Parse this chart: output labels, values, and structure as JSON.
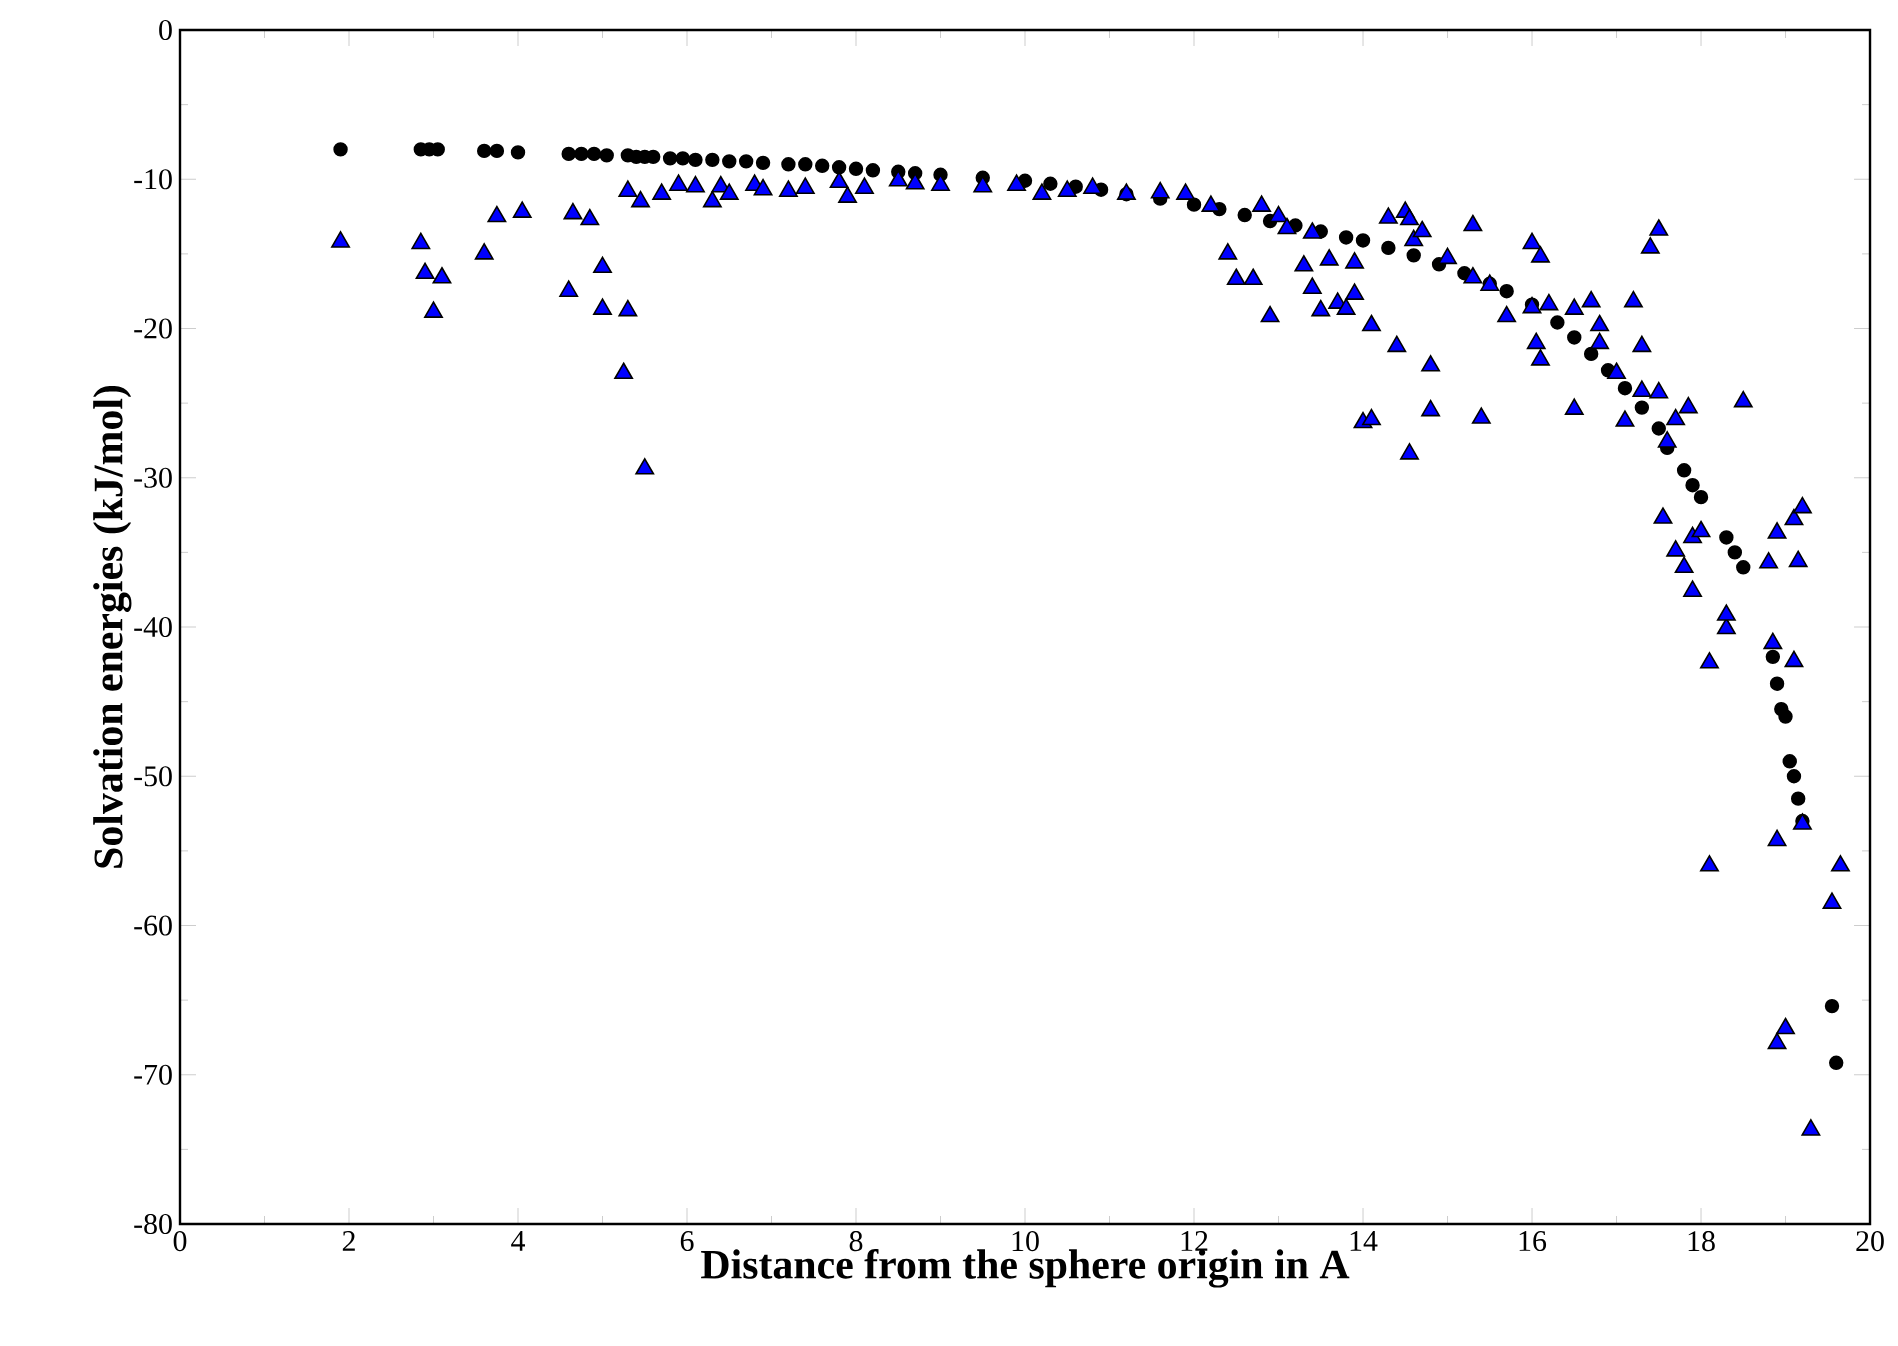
{
  "chart_data": {
    "type": "scatter",
    "xlabel": "Distance from the sphere origin in A",
    "ylabel": "Solvation energies  (kJ/mol)",
    "xlim": [
      0,
      20
    ],
    "ylim": [
      -80,
      0
    ],
    "xticks": [
      0,
      2,
      4,
      6,
      8,
      10,
      12,
      14,
      16,
      18,
      20
    ],
    "yticks": [
      -80,
      -70,
      -60,
      -50,
      -40,
      -30,
      -20,
      -10,
      0
    ],
    "series": [
      {
        "color": "#000000",
        "marker": "circle",
        "x": [
          1.9,
          2.85,
          2.95,
          3.05,
          3.6,
          3.75,
          4,
          4.6,
          4.75,
          4.9,
          5.05,
          5.3,
          5.4,
          5.5,
          5.6,
          5.8,
          5.95,
          6.1,
          6.3,
          6.5,
          6.7,
          6.9,
          7.2,
          7.4,
          7.6,
          7.8,
          8,
          8.2,
          8.5,
          8.7,
          9,
          9.5,
          10,
          10.3,
          10.6,
          10.9,
          11.2,
          11.6,
          12,
          12.3,
          12.6,
          12.9,
          13.2,
          13.5,
          13.8,
          14.0,
          14.3,
          14.6,
          14.9,
          15.2,
          15.5,
          15.7,
          16,
          16.3,
          16.5,
          16.7,
          16.9,
          17.1,
          17.3,
          17.5,
          17.6,
          17.8,
          17.9,
          18,
          18.3,
          18.4,
          18.5,
          18.85,
          18.9,
          18.95,
          19.0,
          19.05,
          19.1,
          19.15,
          19.2,
          19.55,
          19.6
        ],
        "values": [
          -8,
          -8,
          -8,
          -8,
          -8.1,
          -8.1,
          -8.2,
          -8.3,
          -8.3,
          -8.3,
          -8.4,
          -8.4,
          -8.5,
          -8.5,
          -8.5,
          -8.6,
          -8.6,
          -8.7,
          -8.7,
          -8.8,
          -8.8,
          -8.9,
          -9,
          -9,
          -9.1,
          -9.2,
          -9.3,
          -9.4,
          -9.5,
          -9.6,
          -9.7,
          -9.9,
          -10.1,
          -10.3,
          -10.5,
          -10.7,
          -11,
          -11.3,
          -11.7,
          -12,
          -12.4,
          -12.8,
          -13.1,
          -13.5,
          -13.9,
          -14.1,
          -14.6,
          -15.1,
          -15.7,
          -16.3,
          -17,
          -17.5,
          -18.4,
          -19.6,
          -20.6,
          -21.7,
          -22.8,
          -24,
          -25.3,
          -26.7,
          -28,
          -29.5,
          -30.5,
          -31.3,
          -34,
          -35,
          -36,
          -42,
          -43.8,
          -45.5,
          -46,
          -49,
          -50,
          -51.5,
          -53,
          -65.4,
          -69.2
        ]
      },
      {
        "color": "#0000ff",
        "marker": "triangle",
        "x": [
          1.9,
          2.85,
          2.9,
          3.1,
          3.0,
          3.6,
          3.75,
          4.05,
          4.6,
          4.65,
          4.85,
          5.0,
          5.0,
          5.25,
          5.3,
          5.3,
          5.45,
          5.5,
          5.7,
          5.9,
          6.1,
          6.3,
          6.4,
          6.5,
          6.8,
          6.9,
          7.2,
          7.4,
          7.8,
          7.9,
          8.1,
          8.5,
          8.7,
          9.0,
          9.5,
          9.9,
          10.2,
          10.5,
          10.8,
          11.2,
          11.6,
          11.9,
          12.2,
          12.4,
          12.5,
          12.7,
          12.8,
          12.9,
          13.0,
          13.1,
          13.3,
          13.4,
          13.4,
          13.5,
          13.6,
          13.7,
          13.8,
          13.9,
          13.9,
          14.0,
          14.1,
          14.1,
          14.3,
          14.4,
          14.5,
          14.55,
          14.55,
          14.6,
          14.7,
          14.8,
          14.8,
          15.0,
          15.3,
          15.4,
          15.3,
          15.5,
          15.7,
          16.0,
          16.0,
          16.1,
          16.05,
          16.1,
          16.2,
          16.5,
          16.5,
          16.7,
          16.8,
          16.8,
          17.0,
          17.1,
          17.2,
          17.3,
          17.3,
          17.4,
          17.5,
          17.5,
          17.55,
          17.6,
          17.7,
          17.7,
          17.8,
          17.85,
          17.9,
          17.9,
          18.0,
          18.1,
          18.1,
          18.3,
          18.3,
          18.5,
          18.8,
          18.85,
          18.9,
          18.9,
          18.9,
          19.0,
          19.1,
          19.15,
          19.1,
          19.2,
          19.2,
          19.3,
          19.55,
          19.65
        ],
        "values": [
          -14.2,
          -14.3,
          -16.3,
          -16.6,
          -18.9,
          -15,
          -12.5,
          -12.2,
          -17.5,
          -12.3,
          -12.7,
          -15.9,
          -18.7,
          -23,
          -18.8,
          -10.8,
          -11.5,
          -29.4,
          -11,
          -10.4,
          -10.5,
          -11.5,
          -10.5,
          -11,
          -10.4,
          -10.7,
          -10.8,
          -10.6,
          -10.2,
          -11.2,
          -10.6,
          -10.1,
          -10.3,
          -10.4,
          -10.5,
          -10.4,
          -11,
          -10.8,
          -10.6,
          -11,
          -10.9,
          -11,
          -11.8,
          -15,
          -16.7,
          -16.7,
          -11.8,
          -19.2,
          -12.5,
          -13.3,
          -15.8,
          -13.6,
          -17.3,
          -18.8,
          -15.4,
          -18.3,
          -18.7,
          -17.7,
          -15.6,
          -26.3,
          -26.1,
          -19.8,
          -12.6,
          -21.2,
          -12.2,
          -12.7,
          -28.4,
          -14.1,
          -13.5,
          -22.5,
          -25.5,
          -15.3,
          -13.1,
          -26,
          -16.6,
          -17.1,
          -19.2,
          -18.6,
          -14.3,
          -15.2,
          -21,
          -22.1,
          -18.4,
          -18.7,
          -25.4,
          -18.2,
          -21,
          -19.8,
          -23,
          -26.2,
          -18.2,
          -21.2,
          -24.2,
          -14.6,
          -13.4,
          -24.3,
          -32.7,
          -27.6,
          -34.9,
          -26.1,
          -36,
          -25.3,
          -34,
          -37.6,
          -33.6,
          -42.4,
          -56,
          -40.1,
          -39.2,
          -24.9,
          -35.7,
          -41.1,
          -54.3,
          -33.7,
          -67.9,
          -66.9,
          -32.8,
          -35.6,
          -42.3,
          -32,
          -53.2,
          -73.7,
          -58.5,
          -56
        ]
      }
    ]
  }
}
